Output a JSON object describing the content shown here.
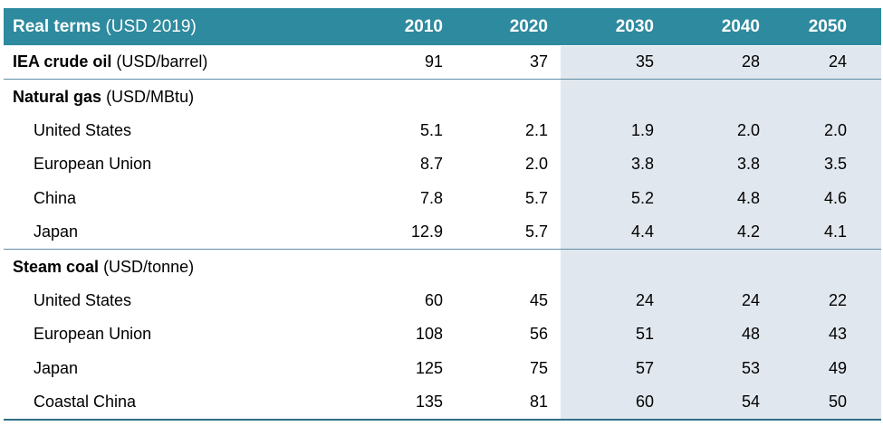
{
  "header": {
    "title_bold": "Real terms",
    "title_unit": "(USD 2019)",
    "years": [
      "2010",
      "2020",
      "2030",
      "2040",
      "2050"
    ]
  },
  "rows": [
    {
      "type": "group",
      "label": "IEA crude oil",
      "unit": "(USD/barrel)",
      "values": [
        "91",
        "37",
        "35",
        "28",
        "24"
      ]
    },
    {
      "type": "group",
      "label": "Natural gas",
      "unit": "(USD/MBtu)",
      "values": [
        "",
        "",
        "",
        "",
        ""
      ]
    },
    {
      "type": "item",
      "label": "United States",
      "values": [
        "5.1",
        "2.1",
        "1.9",
        "2.0",
        "2.0"
      ]
    },
    {
      "type": "item",
      "label": "European Union",
      "values": [
        "8.7",
        "2.0",
        "3.8",
        "3.8",
        "3.5"
      ]
    },
    {
      "type": "item",
      "label": "China",
      "values": [
        "7.8",
        "5.7",
        "5.2",
        "4.8",
        "4.6"
      ]
    },
    {
      "type": "item",
      "label": "Japan",
      "values": [
        "12.9",
        "5.7",
        "4.4",
        "4.2",
        "4.1"
      ]
    },
    {
      "type": "group",
      "label": "Steam coal",
      "unit": "(USD/tonne)",
      "values": [
        "",
        "",
        "",
        "",
        ""
      ]
    },
    {
      "type": "item",
      "label": "United States",
      "values": [
        "60",
        "45",
        "24",
        "24",
        "22"
      ]
    },
    {
      "type": "item",
      "label": "European Union",
      "values": [
        "108",
        "56",
        "51",
        "48",
        "43"
      ]
    },
    {
      "type": "item",
      "label": "Japan",
      "values": [
        "125",
        "75",
        "57",
        "53",
        "49"
      ]
    },
    {
      "type": "item",
      "label": "Coastal China",
      "values": [
        "135",
        "81",
        "60",
        "54",
        "50"
      ]
    }
  ],
  "colors": {
    "header_bg": "#2e8a9e",
    "projection_shade": "#e1e7ee",
    "divider": "#5e8da6"
  }
}
